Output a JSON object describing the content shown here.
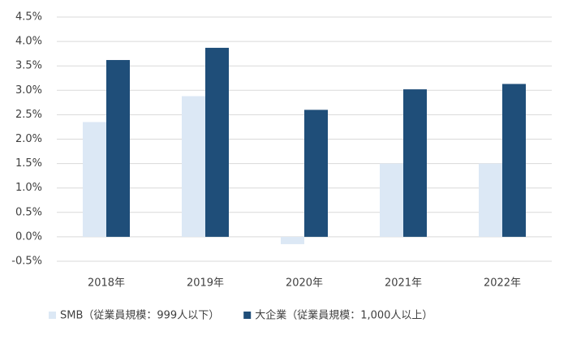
{
  "chart_data": {
    "type": "bar",
    "categories": [
      "2018年",
      "2019年",
      "2020年",
      "2021年",
      "2022年"
    ],
    "series": [
      {
        "name": "SMB（従業員規模：999人以下）",
        "color": "#dce8f5",
        "values": [
          2.35,
          2.88,
          -0.15,
          1.5,
          1.5
        ]
      },
      {
        "name": "大企業（従業員規模：1,000人以上）",
        "color": "#1f4e79",
        "values": [
          3.62,
          3.87,
          2.6,
          3.02,
          3.13
        ]
      }
    ],
    "ylim": [
      -0.5,
      4.5
    ],
    "yticks": [
      {
        "value": -0.5,
        "label": "-0.5%"
      },
      {
        "value": 0,
        "label": "0.0%"
      },
      {
        "value": 0.5,
        "label": "0.5%"
      },
      {
        "value": 1,
        "label": "1.0%"
      },
      {
        "value": 1.5,
        "label": "1.5%"
      },
      {
        "value": 2,
        "label": "2.0%"
      },
      {
        "value": 2.5,
        "label": "2.5%"
      },
      {
        "value": 3,
        "label": "3.0%"
      },
      {
        "value": 3.5,
        "label": "3.5%"
      },
      {
        "value": 4,
        "label": "4.0%"
      },
      {
        "value": 4.5,
        "label": "4.5%"
      }
    ],
    "grid": true,
    "legend": "bottom"
  }
}
